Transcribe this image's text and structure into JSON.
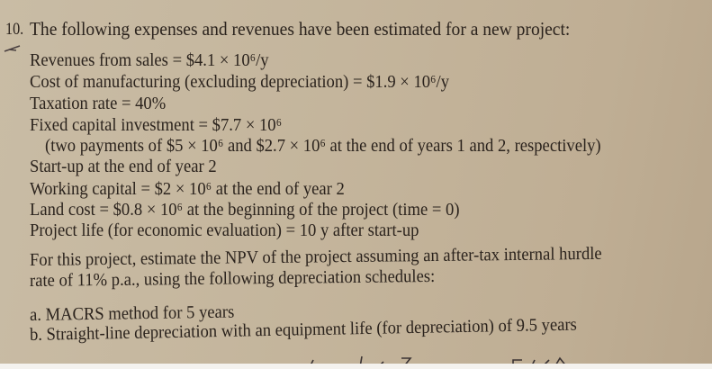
{
  "problem": {
    "number": "10.",
    "intro": "The following expenses and revenues have been estimated for a new project:",
    "items": [
      "Revenues from sales = $4.1 × 10⁶/y",
      "Cost of manufacturing (excluding depreciation) = $1.9 × 10⁶/y",
      "Taxation rate = 40%",
      "Fixed capital investment = $7.7 × 10⁶",
      "(two payments of $5 × 10⁶ and $2.7 × 10⁶ at the end of years 1 and 2, respectively)",
      "Start-up at the end of year 2",
      "Working capital = $2 × 10⁶ at the end of year 2",
      "Land cost = $0.8 × 10⁶ at the beginning of the project (time = 0)",
      "Project life (for economic evaluation) = 10 y after start-up"
    ],
    "question_line1": "For this project, estimate the NPV of the project assuming an after-tax internal hurdle",
    "question_line2": "rate of 11% p.a., using the following depreciation schedules:",
    "parts": [
      {
        "label": "a.",
        "text": "MACRS method for 5 years"
      },
      {
        "label": "b.",
        "text": "Straight-line depreciation with an equipment life (for depreciation) of 9.5 years"
      }
    ]
  }
}
